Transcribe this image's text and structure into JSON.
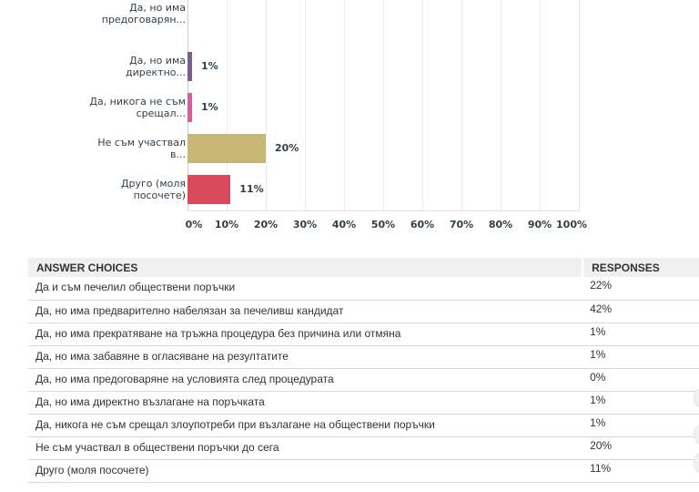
{
  "chart_data": {
    "type": "bar",
    "orientation": "horizontal",
    "categories": [
      "Да, но има предоговарян...",
      "Да, но има директно...",
      "Да, никога не съм срещал...",
      "Не съм участвал в...",
      "Друго (моля посочете)"
    ],
    "values": [
      0,
      1,
      1,
      20,
      11
    ],
    "value_labels": [
      "",
      "1%",
      "1%",
      "20%",
      "11%"
    ],
    "colors": [
      "#6b8fd6",
      "#7d5c92",
      "#d260a0",
      "#c8b878",
      "#d94a5e"
    ],
    "xlim": [
      0,
      100
    ],
    "x_ticks": [
      "0%",
      "10%",
      "20%",
      "30%",
      "40%",
      "50%",
      "60%",
      "70%",
      "80%",
      "90%",
      "100%"
    ],
    "grid": true
  },
  "table": {
    "headers": [
      "ANSWER CHOICES",
      "RESPONSES"
    ],
    "rows": [
      {
        "choice": "Да и съм печелил обществени поръчки",
        "response": "22%"
      },
      {
        "choice": "Да, но има предварително набелязан за печеливш кандидат",
        "response": "42%"
      },
      {
        "choice": "Да, но има прекратяване на тръжна процедура без причина или отмяна",
        "response": "1%"
      },
      {
        "choice": "Да, но има забавяне в огласяване на резултатите",
        "response": "1%"
      },
      {
        "choice": "Да, но има предоговаряне на условията след процедурата",
        "response": "0%"
      },
      {
        "choice": "Да, но има директно възлагане на поръчката",
        "response": "1%"
      },
      {
        "choice": "Да, никога не съм срещал злоупотреби при възлагане на обществени поръчки",
        "response": "1%"
      },
      {
        "choice": "Не съм участвал в обществени поръчки до сега",
        "response": "20%"
      },
      {
        "choice": "Друго (моля посочете)",
        "response": "11%"
      }
    ]
  }
}
